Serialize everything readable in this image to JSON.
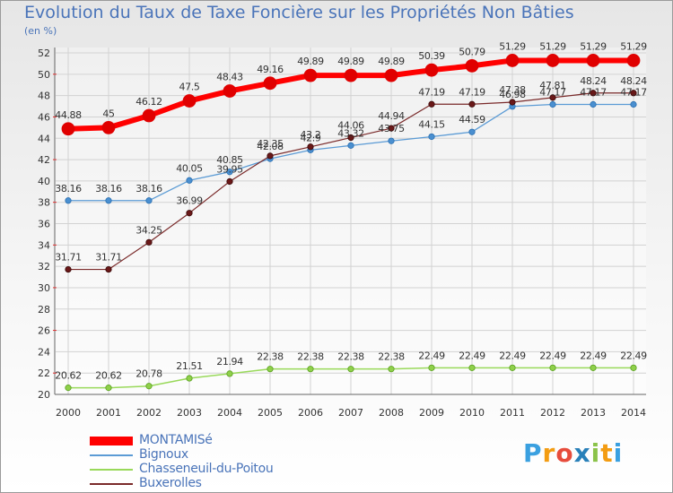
{
  "chart_data": {
    "type": "line",
    "title": "Evolution du Taux de Taxe Foncière sur les Propriétés Non Bâties",
    "ylabel": "(en %)",
    "xlabel": "",
    "ylim": [
      20,
      52
    ],
    "yticks": [
      20,
      22,
      24,
      26,
      28,
      30,
      32,
      34,
      36,
      38,
      40,
      42,
      44,
      46,
      48,
      50,
      52
    ],
    "categories": [
      "2000",
      "2001",
      "2002",
      "2003",
      "2004",
      "2005",
      "2006",
      "2007",
      "2008",
      "2009",
      "2010",
      "2011",
      "2012",
      "2013",
      "2014"
    ],
    "grid": true,
    "legend_position": "bottom-left",
    "series": [
      {
        "name": "MONTAMISé",
        "color": "#ff0000",
        "values": [
          44.88,
          45,
          46.12,
          47.5,
          48.43,
          49.16,
          49.89,
          49.89,
          49.89,
          50.39,
          50.79,
          51.29,
          51.29,
          51.29,
          51.29
        ],
        "labels": [
          "44.88",
          "45",
          "46.12",
          "47.5",
          "48.43",
          "49.16",
          "49.89",
          "49.89",
          "49.89",
          "50.39",
          "50.79",
          "51.29",
          "51.29",
          "51.29",
          "51.29"
        ]
      },
      {
        "name": "Bignoux",
        "color": "#5b9bd5",
        "values": [
          38.16,
          38.16,
          38.16,
          40.05,
          40.85,
          42.08,
          42.9,
          43.32,
          43.75,
          44.15,
          44.59,
          46.98,
          47.17,
          47.17,
          47.17
        ],
        "labels": [
          "38.16",
          "38.16",
          "38.16",
          "40.05",
          "40.85",
          "42.08",
          "42.9",
          "43.32",
          "43.75",
          "44.15",
          "44.59",
          "46.98",
          "47.17",
          "47.17",
          "47.17"
        ]
      },
      {
        "name": "Chasseneuil-du-Poitou",
        "color": "#99d95a",
        "values": [
          20.62,
          20.62,
          20.78,
          21.51,
          21.94,
          22.38,
          22.38,
          22.38,
          22.38,
          22.49,
          22.49,
          22.49,
          22.49,
          22.49,
          22.49
        ],
        "labels": [
          "20.62",
          "20.62",
          "20.78",
          "21.51",
          "21.94",
          "22.38",
          "22.38",
          "22.38",
          "22.38",
          "22.49",
          "22.49",
          "22.49",
          "22.49",
          "22.49",
          "22.49"
        ]
      },
      {
        "name": "Buxerolles",
        "color": "#7a2a2a",
        "values": [
          31.71,
          31.71,
          34.25,
          36.99,
          39.95,
          42.35,
          43.2,
          44.06,
          44.94,
          47.19,
          47.19,
          47.38,
          47.81,
          48.24,
          48.24
        ],
        "labels": [
          "31.71",
          "31.71",
          "34.25",
          "36.99",
          "39.95",
          "42.35",
          "43.2",
          "44.06",
          "44.94",
          "47.19",
          "47.19",
          "47.38",
          "47.81",
          "48.24",
          "48.24"
        ]
      }
    ]
  },
  "logo": {
    "letters": [
      "P",
      "r",
      "o",
      "x",
      "i",
      "t",
      "i"
    ],
    "colors": [
      "#3aa0e0",
      "#f39c12",
      "#e74c3c",
      "#2980b9",
      "#8bc34a",
      "#f39c12",
      "#3aa0e0"
    ]
  }
}
